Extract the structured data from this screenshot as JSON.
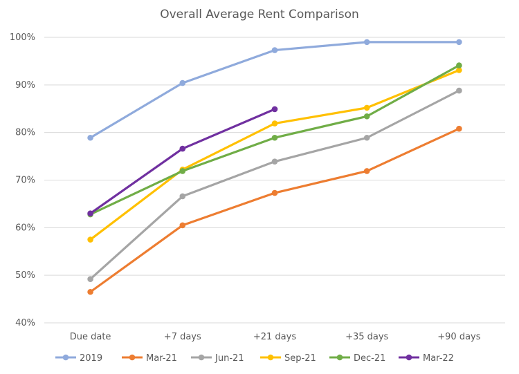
{
  "chart_data": {
    "type": "line",
    "title": "Overall Average Rent Comparison",
    "xlabel": "",
    "ylabel": "",
    "categories": [
      "Due date",
      "+7 days",
      "+21 days",
      "+35 days",
      "+90 days"
    ],
    "ylim": [
      40,
      100
    ],
    "yticks": [
      40,
      50,
      60,
      70,
      80,
      90,
      100
    ],
    "ytick_labels": [
      "40%",
      "50%",
      "60%",
      "70%",
      "80%",
      "90%",
      "100%"
    ],
    "grid": true,
    "legend_position": "bottom",
    "series": [
      {
        "name": "2019",
        "color": "#8faadc",
        "values": [
          78.9,
          90.4,
          97.3,
          99.0,
          99.0
        ]
      },
      {
        "name": "Mar-21",
        "color": "#ed7d31",
        "values": [
          46.5,
          60.5,
          67.3,
          71.9,
          80.8
        ]
      },
      {
        "name": "Jun-21",
        "color": "#a5a5a5",
        "values": [
          49.2,
          66.6,
          73.9,
          78.9,
          88.8
        ]
      },
      {
        "name": "Sep-21",
        "color": "#ffc000",
        "values": [
          57.5,
          72.2,
          81.9,
          85.2,
          93.1
        ]
      },
      {
        "name": "Dec-21",
        "color": "#70ad47",
        "values": [
          62.8,
          71.9,
          78.9,
          83.4,
          94.1
        ]
      },
      {
        "name": "Mar-22",
        "color": "#7030a0",
        "values": [
          63.0,
          76.6,
          84.9,
          null,
          null
        ]
      }
    ]
  }
}
